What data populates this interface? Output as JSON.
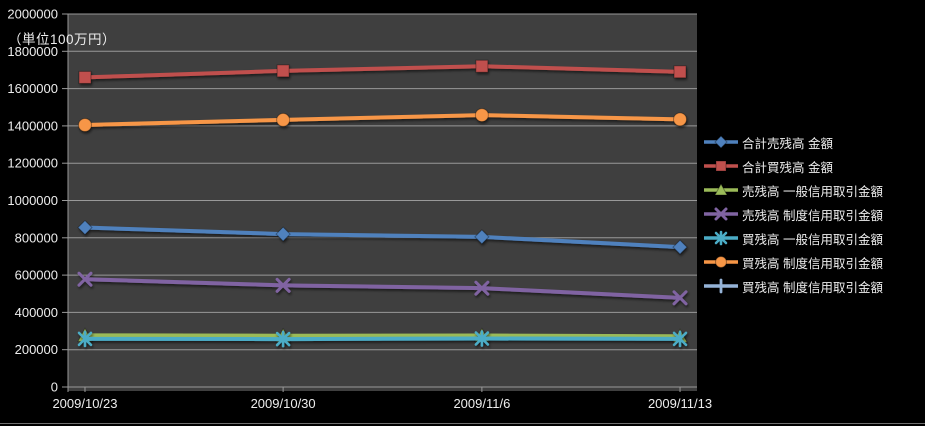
{
  "chart_data": {
    "type": "line",
    "title": "",
    "unit_label": "（単位100万円）",
    "xlabel": "",
    "ylabel": "",
    "x": [
      "2009/10/23",
      "2009/10/30",
      "2009/11/6",
      "2009/11/13"
    ],
    "y_tick_labels": [
      "2000000",
      "1800000",
      "1600000",
      "1400000",
      "1200000",
      "1000000",
      "800000",
      "600000",
      "400000",
      "200000",
      "0"
    ],
    "ylim": [
      0,
      2000000
    ],
    "y_step": 200000,
    "grid": true,
    "legend_position": "right",
    "colors": {
      "background": "#000000",
      "plot_background": "#3F3F3F",
      "grid_color": "#999999",
      "axis_color": "#999999",
      "text_color": "#EDEDED"
    },
    "series": [
      {
        "name": "合計売残高 金額",
        "color": "#4F81BD",
        "marker": "diamond",
        "values": [
          855000,
          820000,
          805000,
          750000
        ]
      },
      {
        "name": "合計買残高 金額",
        "color": "#C0504D",
        "marker": "square",
        "values": [
          1660000,
          1695000,
          1720000,
          1690000
        ]
      },
      {
        "name": "売残高 一般信用取引金額",
        "color": "#9BBB59",
        "marker": "triangle",
        "values": [
          277000,
          275000,
          276000,
          272000
        ]
      },
      {
        "name": "売残高 制度信用取引金額",
        "color": "#8064A2",
        "marker": "x",
        "values": [
          578000,
          545000,
          530000,
          478000
        ]
      },
      {
        "name": "買残高 一般信用取引金額",
        "color": "#4BACC6",
        "marker": "asterisk",
        "values": [
          258000,
          257000,
          260000,
          258000
        ]
      },
      {
        "name": "買残高 制度信用取引金額",
        "color": "#F79646",
        "marker": "circle",
        "values": [
          1405000,
          1432000,
          1458000,
          1435000
        ]
      },
      {
        "name": "買残高 制度信用取引金額",
        "color": "#95B3D7",
        "marker": "plus",
        "values": []
      }
    ]
  }
}
